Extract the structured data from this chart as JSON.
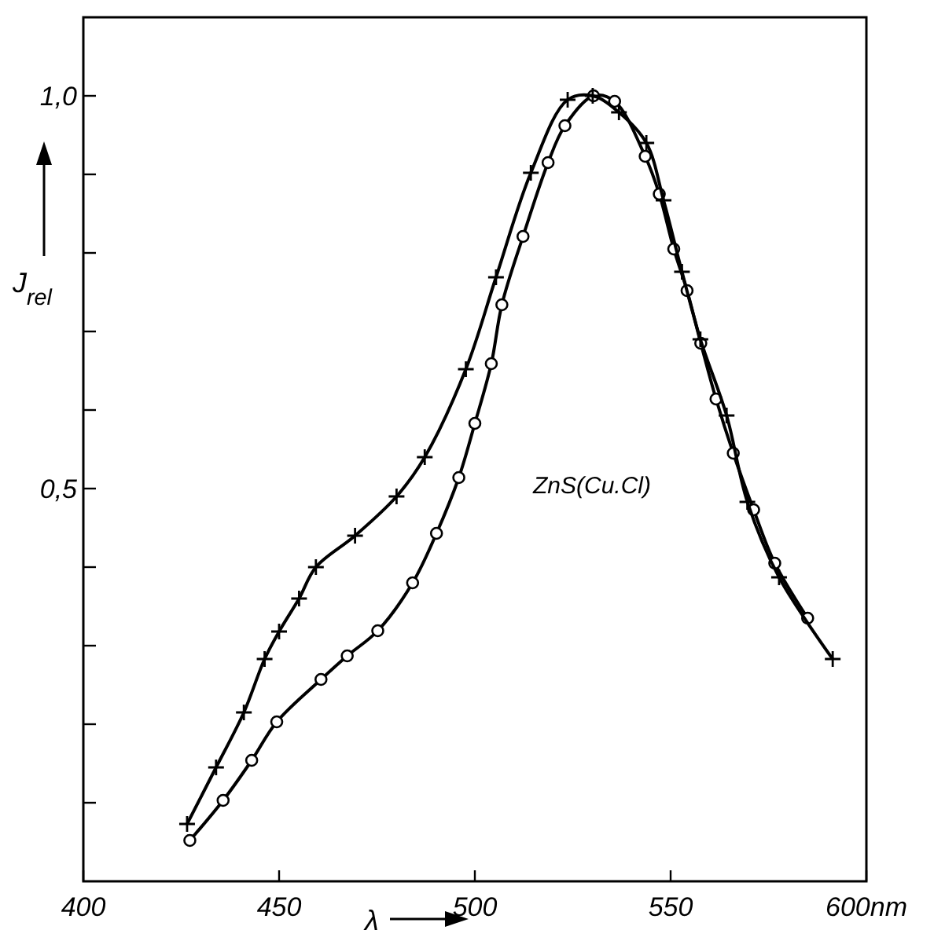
{
  "chart_data": {
    "type": "line",
    "xlabel": "λ",
    "ylabel": "J$_{rel}$",
    "annotations": [
      "ZnS(Cu.Cl)"
    ],
    "xlim": [
      400,
      600
    ],
    "ylim": [
      0,
      1.1
    ],
    "xticks": [
      400,
      450,
      500,
      550,
      {
        "value": 600,
        "label": "600nm"
      }
    ],
    "yticks": [
      {
        "value": 0.1,
        "label": null
      },
      {
        "value": 0.2,
        "label": null
      },
      {
        "value": 0.3,
        "label": null
      },
      {
        "value": 0.4,
        "label": null
      },
      {
        "value": 0.5,
        "label": "0,5"
      },
      {
        "value": 0.6,
        "label": null
      },
      {
        "value": 0.7,
        "label": null
      },
      {
        "value": 0.8,
        "label": null
      },
      {
        "value": 0.9,
        "label": null
      },
      {
        "value": 1.0,
        "label": "1,0"
      }
    ],
    "grid": false,
    "line_style": "solid",
    "series": [
      {
        "color": "#000000",
        "marker": "cross",
        "x": [
          426.5,
          433.9,
          441,
          446.3,
          450,
          455.1,
          459.4,
          469.4,
          480,
          487.2,
          497.7,
          505.4,
          514.3,
          523.7,
          530.1,
          536.8,
          543.8,
          548.2,
          552.9,
          557.6,
          564.3,
          569.6,
          577.7,
          591.4
        ],
        "values": [
          0.073,
          0.145,
          0.215,
          0.283,
          0.318,
          0.36,
          0.4,
          0.44,
          0.49,
          0.54,
          0.652,
          0.769,
          0.902,
          0.995,
          1.0,
          0.979,
          0.94,
          0.867,
          0.776,
          0.69,
          0.593,
          0.483,
          0.387,
          0.283
        ]
      },
      {
        "color": "#000000",
        "marker": "circle",
        "x": [
          427.2,
          435.7,
          443,
          449.4,
          460.7,
          467.4,
          475.2,
          484.1,
          490.2,
          495.9,
          500,
          504.2,
          506.9,
          512.3,
          518.7,
          523,
          530.3,
          535.7,
          543.5,
          547.1,
          550.8,
          554.2,
          557.7,
          561.6,
          566,
          571.2,
          576.6,
          585
        ],
        "values": [
          0.052,
          0.103,
          0.154,
          0.203,
          0.257,
          0.287,
          0.319,
          0.38,
          0.443,
          0.514,
          0.583,
          0.659,
          0.734,
          0.821,
          0.915,
          0.962,
          1.0,
          0.993,
          0.923,
          0.875,
          0.805,
          0.752,
          0.685,
          0.614,
          0.545,
          0.473,
          0.405,
          0.335
        ]
      }
    ]
  }
}
